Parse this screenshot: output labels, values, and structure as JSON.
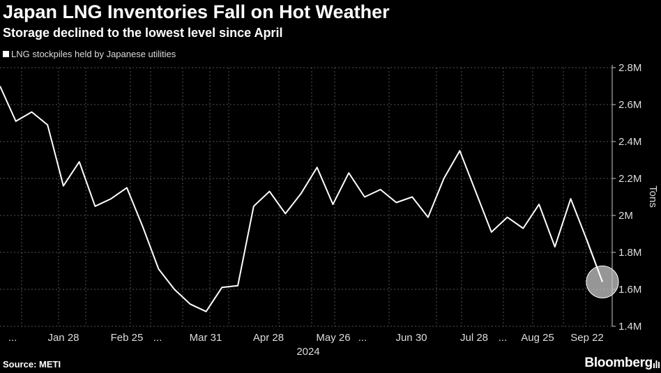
{
  "header": {
    "title": "Japan LNG Inventories Fall on Hot Weather",
    "subtitle": "Storage declined to the lowest level since April",
    "legend_label": "LNG stockpiles held by Japanese utilities"
  },
  "footer": {
    "source": "Source: METI",
    "brand": "Bloomberg"
  },
  "chart_data": {
    "type": "line",
    "title": "Japan LNG Inventories Fall on Hot Weather",
    "subtitle": "Storage declined to the lowest level since April",
    "ylabel": "Tons",
    "xlabel": "2024",
    "ylim": [
      1.4,
      2.8
    ],
    "y_ticks": [
      1.4,
      1.6,
      1.8,
      2.0,
      2.2,
      2.4,
      2.6,
      2.8
    ],
    "y_tick_labels": [
      "1.4M",
      "1.6M",
      "1.8M",
      "2M",
      "2.2M",
      "2.4M",
      "2.6M",
      "2.8M"
    ],
    "x_tick_labels": [
      "...",
      "Jan 28",
      "Feb 25",
      "...",
      "Mar 31",
      "Apr 28",
      "May 26",
      "...",
      "Jun 30",
      "Jul 28",
      "...",
      "Aug 25",
      "Sep 22"
    ],
    "x_year_label": "2024",
    "grid": true,
    "highlight": "last point circled",
    "series": [
      {
        "name": "LNG stockpiles held by Japanese utilities",
        "color": "#ffffff",
        "values": [
          2.7,
          2.51,
          2.56,
          2.49,
          2.16,
          2.29,
          2.05,
          2.09,
          2.15,
          1.94,
          1.71,
          1.6,
          1.52,
          1.48,
          1.61,
          1.62,
          2.05,
          2.13,
          2.01,
          2.12,
          2.26,
          2.06,
          2.23,
          2.1,
          2.14,
          2.07,
          2.1,
          1.99,
          2.2,
          2.35,
          2.13,
          1.91,
          1.99,
          1.93,
          2.06,
          1.83,
          2.09,
          1.87,
          1.64
        ]
      }
    ]
  }
}
